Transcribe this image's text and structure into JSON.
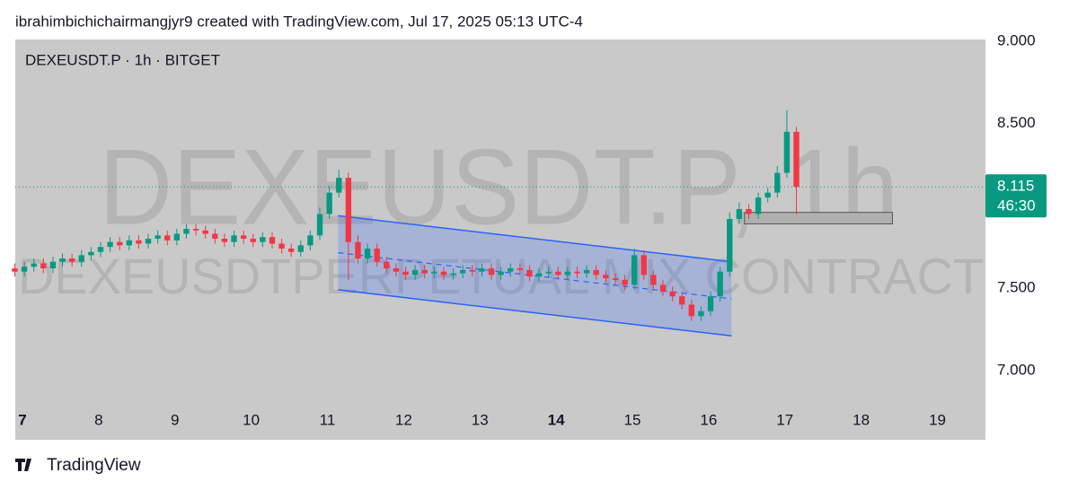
{
  "header": "ibrahimbichichairmangjyr9 created with TradingView.com, Jul 17, 2025 05:13 UTC-4",
  "footer": "TradingView",
  "chart_data": {
    "type": "candlestick",
    "symbol": "DEXEUSDT.P · 1h · BITGET",
    "watermark": "DEXEUSDT.P, 1h",
    "watermark_subtitle": "DEXEUSDTPERPETUAL MIX CONTRACT",
    "up_color": "#089981",
    "down_color": "#f23645",
    "x": [
      6.9,
      7.025,
      7.15,
      7.275,
      7.4,
      7.525,
      7.65,
      7.775,
      7.9,
      8.025,
      8.15,
      8.275,
      8.4,
      8.525,
      8.65,
      8.775,
      8.9,
      9.025,
      9.15,
      9.275,
      9.4,
      9.525,
      9.65,
      9.775,
      9.9,
      10.025,
      10.15,
      10.275,
      10.4,
      10.525,
      10.65,
      10.775,
      10.9,
      11.025,
      11.15,
      11.275,
      11.4,
      11.525,
      11.65,
      11.775,
      11.9,
      12.025,
      12.15,
      12.275,
      12.4,
      12.525,
      12.65,
      12.775,
      12.9,
      13.025,
      13.15,
      13.275,
      13.4,
      13.525,
      13.65,
      13.775,
      13.9,
      14.025,
      14.15,
      14.275,
      14.4,
      14.525,
      14.65,
      14.775,
      14.9,
      15.025,
      15.15,
      15.275,
      15.4,
      15.525,
      15.65,
      15.775,
      15.9,
      16.025,
      16.15,
      16.275,
      16.4,
      16.525,
      16.65,
      16.775,
      16.9,
      17.025,
      17.15
    ],
    "open": [
      7.62,
      7.6,
      7.63,
      7.65,
      7.62,
      7.66,
      7.68,
      7.66,
      7.7,
      7.72,
      7.75,
      7.78,
      7.76,
      7.79,
      7.77,
      7.8,
      7.82,
      7.79,
      7.83,
      7.86,
      7.85,
      7.83,
      7.8,
      7.78,
      7.82,
      7.8,
      7.78,
      7.81,
      7.77,
      7.74,
      7.72,
      7.76,
      7.82,
      7.95,
      8.08,
      8.17,
      7.78,
      7.68,
      7.74,
      7.66,
      7.62,
      7.6,
      7.58,
      7.61,
      7.59,
      7.6,
      7.58,
      7.59,
      7.61,
      7.6,
      7.62,
      7.58,
      7.6,
      7.62,
      7.61,
      7.57,
      7.59,
      7.6,
      7.58,
      7.6,
      7.59,
      7.61,
      7.58,
      7.56,
      7.55,
      7.52,
      7.7,
      7.58,
      7.52,
      7.48,
      7.45,
      7.4,
      7.33,
      7.36,
      7.45,
      7.6,
      7.92,
      7.98,
      7.95,
      8.05,
      8.08,
      8.2,
      8.45
    ],
    "high": [
      7.65,
      7.66,
      7.68,
      7.68,
      7.69,
      7.71,
      7.71,
      7.73,
      7.75,
      7.78,
      7.81,
      7.81,
      7.82,
      7.82,
      7.83,
      7.85,
      7.85,
      7.86,
      7.89,
      7.89,
      7.88,
      7.86,
      7.83,
      7.85,
      7.85,
      7.83,
      7.84,
      7.84,
      7.8,
      7.77,
      7.79,
      7.85,
      7.99,
      8.12,
      8.22,
      8.2,
      7.82,
      7.77,
      7.77,
      7.69,
      7.65,
      7.63,
      7.64,
      7.64,
      7.63,
      7.63,
      7.62,
      7.64,
      7.64,
      7.65,
      7.65,
      7.63,
      7.65,
      7.65,
      7.64,
      7.62,
      7.63,
      7.63,
      7.63,
      7.63,
      7.64,
      7.64,
      7.61,
      7.59,
      7.58,
      7.74,
      7.73,
      7.61,
      7.55,
      7.51,
      7.48,
      7.43,
      7.39,
      7.48,
      7.63,
      7.96,
      8.02,
      8.01,
      8.08,
      8.11,
      8.24,
      8.58,
      8.48
    ],
    "low": [
      7.57,
      7.57,
      7.6,
      7.59,
      7.59,
      7.63,
      7.63,
      7.63,
      7.67,
      7.69,
      7.72,
      7.73,
      7.73,
      7.74,
      7.74,
      7.77,
      7.76,
      7.76,
      7.8,
      7.82,
      7.8,
      7.77,
      7.75,
      7.75,
      7.77,
      7.75,
      7.75,
      7.74,
      7.71,
      7.69,
      7.69,
      7.73,
      7.79,
      7.92,
      8.05,
      7.55,
      7.65,
      7.65,
      7.63,
      7.59,
      7.57,
      7.55,
      7.55,
      7.56,
      7.56,
      7.55,
      7.55,
      7.56,
      7.57,
      7.57,
      7.55,
      7.55,
      7.57,
      7.58,
      7.54,
      7.54,
      7.56,
      7.55,
      7.55,
      7.56,
      7.56,
      7.55,
      7.53,
      7.52,
      7.49,
      7.49,
      7.55,
      7.49,
      7.45,
      7.42,
      7.37,
      7.3,
      7.3,
      7.33,
      7.42,
      7.57,
      7.89,
      7.92,
      7.92,
      8.02,
      8.05,
      8.17,
      7.95
    ],
    "close": [
      7.6,
      7.63,
      7.65,
      7.62,
      7.66,
      7.68,
      7.66,
      7.7,
      7.72,
      7.75,
      7.78,
      7.76,
      7.79,
      7.77,
      7.8,
      7.82,
      7.79,
      7.83,
      7.86,
      7.85,
      7.83,
      7.8,
      7.78,
      7.82,
      7.8,
      7.78,
      7.81,
      7.77,
      7.74,
      7.72,
      7.76,
      7.82,
      7.95,
      8.08,
      8.17,
      7.78,
      7.68,
      7.74,
      7.66,
      7.62,
      7.6,
      7.58,
      7.61,
      7.59,
      7.6,
      7.58,
      7.59,
      7.61,
      7.6,
      7.62,
      7.58,
      7.6,
      7.62,
      7.61,
      7.57,
      7.59,
      7.6,
      7.58,
      7.6,
      7.59,
      7.61,
      7.58,
      7.56,
      7.55,
      7.52,
      7.7,
      7.58,
      7.52,
      7.48,
      7.45,
      7.4,
      7.33,
      7.36,
      7.45,
      7.6,
      7.92,
      7.98,
      7.95,
      8.05,
      8.08,
      8.2,
      8.45,
      8.115
    ],
    "last_price": 8.115,
    "countdown": "46:30",
    "channel": {
      "x": [
        11.14,
        16.3
      ],
      "upper": [
        7.94,
        7.66
      ],
      "lower": [
        7.49,
        7.21
      ],
      "color": "#2962ff"
    },
    "box": {
      "x": [
        16.47,
        18.41
      ],
      "y": [
        7.89,
        7.96
      ]
    },
    "xlim": [
      6.906,
      19.63
    ],
    "xticks": [
      7,
      8,
      9,
      10,
      11,
      12,
      13,
      14,
      15,
      16,
      17,
      18,
      19
    ],
    "xtick_bold": [
      7,
      14
    ],
    "ylim": [
      6.77,
      9.01
    ],
    "yticks": [
      {
        "value": 7,
        "label": "7.000"
      },
      {
        "value": 7.5,
        "label": "7.500"
      },
      {
        "value": 8.5,
        "label": "8.500"
      },
      {
        "value": 9,
        "label": "9.000"
      }
    ]
  }
}
